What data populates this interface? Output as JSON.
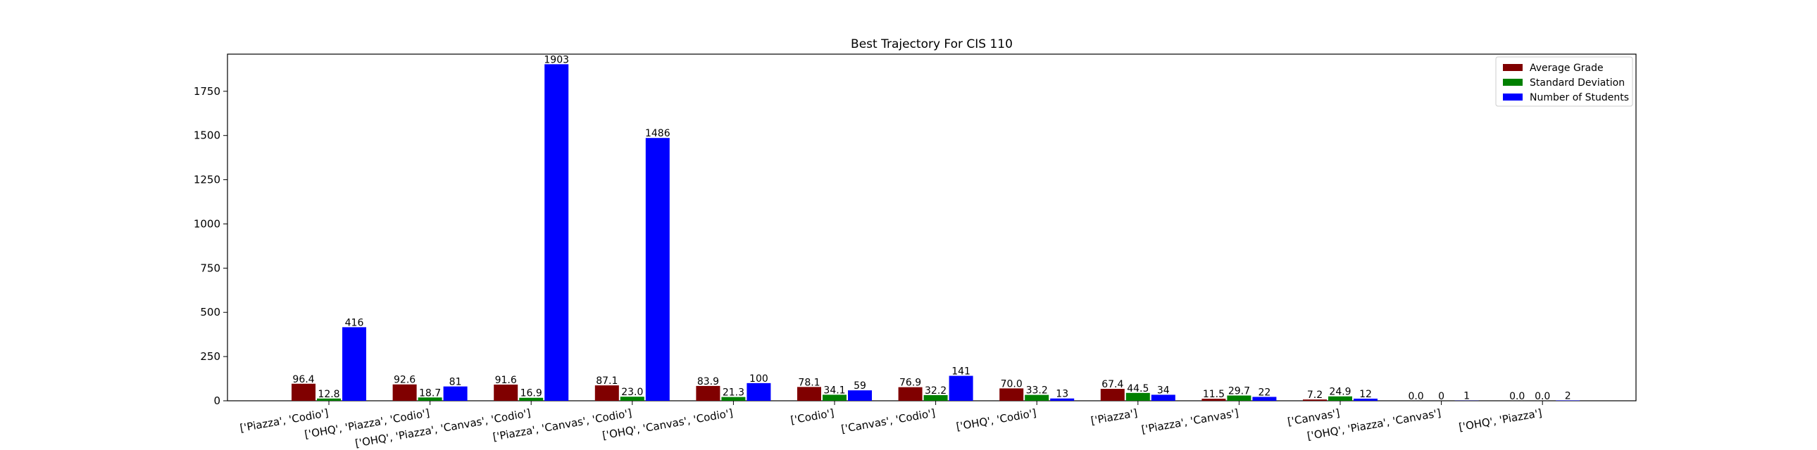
{
  "chart_data": {
    "type": "bar",
    "title": "Best Trajectory For CIS 110",
    "xlabel": "",
    "ylabel": "",
    "ylim": [
      0,
      1960
    ],
    "yticks": [
      0,
      250,
      500,
      750,
      1000,
      1250,
      1500,
      1750
    ],
    "grid": false,
    "legend_position": "top-right",
    "categories": [
      "['Piazza', 'Codio']",
      "['OHQ', 'Piazza', 'Codio']",
      "['OHQ', 'Piazza', 'Canvas', 'Codio']",
      "['Piazza', 'Canvas', 'Codio']",
      "['OHQ', 'Canvas', 'Codio']",
      "['Codio']",
      "['Canvas', 'Codio']",
      "['OHQ', 'Codio']",
      "['Piazza']",
      "['Piazza', 'Canvas']",
      "['Canvas']",
      "['OHQ', 'Piazza', 'Canvas']",
      "['OHQ', 'Piazza']"
    ],
    "series": [
      {
        "name": "Average Grade",
        "color": "#800000",
        "values": [
          96.4,
          92.6,
          91.6,
          87.1,
          83.9,
          78.1,
          76.9,
          70.0,
          67.4,
          11.5,
          7.2,
          0.0,
          0.0
        ],
        "labels": [
          "96.4",
          "92.6",
          "91.6",
          "87.1",
          "83.9",
          "78.1",
          "76.9",
          "70.0",
          "67.4",
          "11.5",
          "7.2",
          "0.0",
          "0.0"
        ]
      },
      {
        "name": "Standard Deviation",
        "color": "#008000",
        "values": [
          12.8,
          18.7,
          16.9,
          23.0,
          21.3,
          34.1,
          32.2,
          33.2,
          44.5,
          29.7,
          24.9,
          0,
          0.0
        ],
        "labels": [
          "12.8",
          "18.7",
          "16.9",
          "23.0",
          "21.3",
          "34.1",
          "32.2",
          "33.2",
          "44.5",
          "29.7",
          "24.9",
          "0",
          "0.0"
        ]
      },
      {
        "name": "Number of Students",
        "color": "#0000ff",
        "values": [
          416,
          81,
          1903,
          1486,
          100,
          59,
          141,
          13,
          34,
          22,
          12,
          1,
          2
        ],
        "labels": [
          "416",
          "81",
          "1903",
          "1486",
          "100",
          "59",
          "141",
          "13",
          "34",
          "22",
          "12",
          "1",
          "2"
        ]
      }
    ]
  }
}
